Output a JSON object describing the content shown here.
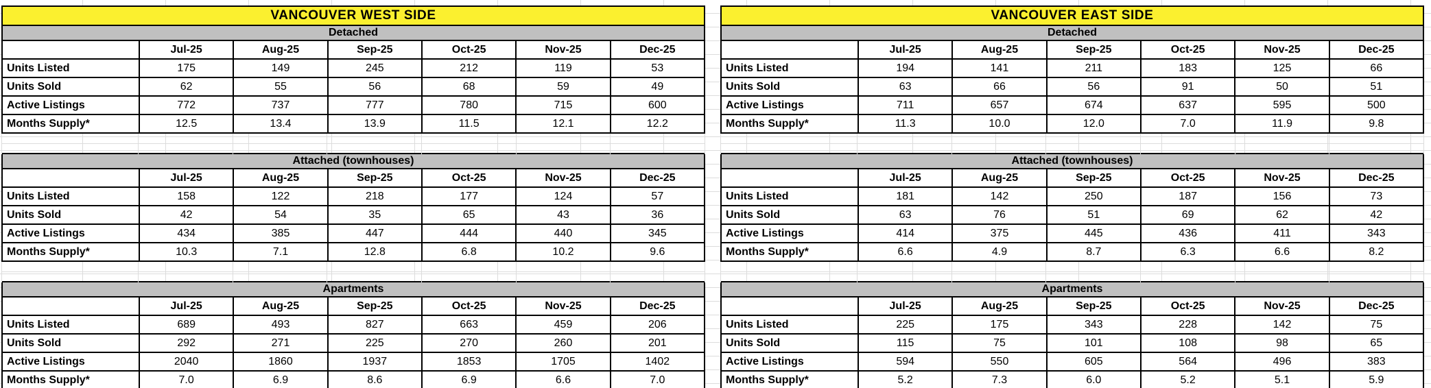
{
  "sheet": {
    "months": [
      "Jul-25",
      "Aug-25",
      "Sep-25",
      "Oct-25",
      "Nov-25",
      "Dec-25"
    ]
  },
  "boards": [
    {
      "title": "VANCOUVER WEST SIDE",
      "sections": [
        {
          "name": "Detached",
          "rows": [
            {
              "label": "Units Listed",
              "values": [
                "175",
                "149",
                "245",
                "212",
                "119",
                "53"
              ]
            },
            {
              "label": "Units Sold",
              "values": [
                "62",
                "55",
                "56",
                "68",
                "59",
                "49"
              ]
            },
            {
              "label": "Active Listings",
              "values": [
                "772",
                "737",
                "777",
                "780",
                "715",
                "600"
              ]
            },
            {
              "label": "Months Supply*",
              "values": [
                "12.5",
                "13.4",
                "13.9",
                "11.5",
                "12.1",
                "12.2"
              ]
            }
          ]
        },
        {
          "name": "Attached (townhouses)",
          "rows": [
            {
              "label": "Units Listed",
              "values": [
                "158",
                "122",
                "218",
                "177",
                "124",
                "57"
              ]
            },
            {
              "label": "Units Sold",
              "values": [
                "42",
                "54",
                "35",
                "65",
                "43",
                "36"
              ]
            },
            {
              "label": "Active Listings",
              "values": [
                "434",
                "385",
                "447",
                "444",
                "440",
                "345"
              ]
            },
            {
              "label": "Months Supply*",
              "values": [
                "10.3",
                "7.1",
                "12.8",
                "6.8",
                "10.2",
                "9.6"
              ]
            }
          ]
        },
        {
          "name": "Apartments",
          "rows": [
            {
              "label": "Units Listed",
              "values": [
                "689",
                "493",
                "827",
                "663",
                "459",
                "206"
              ]
            },
            {
              "label": "Units Sold",
              "values": [
                "292",
                "271",
                "225",
                "270",
                "260",
                "201"
              ]
            },
            {
              "label": "Active Listings",
              "values": [
                "2040",
                "1860",
                "1937",
                "1853",
                "1705",
                "1402"
              ]
            },
            {
              "label": "Months Supply*",
              "values": [
                "7.0",
                "6.9",
                "8.6",
                "6.9",
                "6.6",
                "7.0"
              ]
            }
          ]
        }
      ]
    },
    {
      "title": "VANCOUVER EAST SIDE",
      "sections": [
        {
          "name": "Detached",
          "rows": [
            {
              "label": "Units Listed",
              "values": [
                "194",
                "141",
                "211",
                "183",
                "125",
                "66"
              ]
            },
            {
              "label": "Units Sold",
              "values": [
                "63",
                "66",
                "56",
                "91",
                "50",
                "51"
              ]
            },
            {
              "label": "Active Listings",
              "values": [
                "711",
                "657",
                "674",
                "637",
                "595",
                "500"
              ]
            },
            {
              "label": "Months Supply*",
              "values": [
                "11.3",
                "10.0",
                "12.0",
                "7.0",
                "11.9",
                "9.8"
              ]
            }
          ]
        },
        {
          "name": "Attached (townhouses)",
          "rows": [
            {
              "label": "Units Listed",
              "values": [
                "181",
                "142",
                "250",
                "187",
                "156",
                "73"
              ]
            },
            {
              "label": "Units Sold",
              "values": [
                "63",
                "76",
                "51",
                "69",
                "62",
                "42"
              ]
            },
            {
              "label": "Active Listings",
              "values": [
                "414",
                "375",
                "445",
                "436",
                "411",
                "343"
              ]
            },
            {
              "label": "Months Supply*",
              "values": [
                "6.6",
                "4.9",
                "8.7",
                "6.3",
                "6.6",
                "8.2"
              ]
            }
          ]
        },
        {
          "name": "Apartments",
          "rows": [
            {
              "label": "Units Listed",
              "values": [
                "225",
                "175",
                "343",
                "228",
                "142",
                "75"
              ]
            },
            {
              "label": "Units Sold",
              "values": [
                "115",
                "75",
                "101",
                "108",
                "98",
                "65"
              ]
            },
            {
              "label": "Active Listings",
              "values": [
                "594",
                "550",
                "605",
                "564",
                "496",
                "383"
              ]
            },
            {
              "label": "Months Supply*",
              "values": [
                "5.2",
                "7.3",
                "6.0",
                "5.2",
                "5.1",
                "5.9"
              ]
            }
          ]
        }
      ]
    }
  ],
  "colors": {
    "title_bg": "#FBF02F",
    "section_header_bg": "#C0C0C0",
    "border": "#000000",
    "gridline": "#DCDCDC"
  }
}
